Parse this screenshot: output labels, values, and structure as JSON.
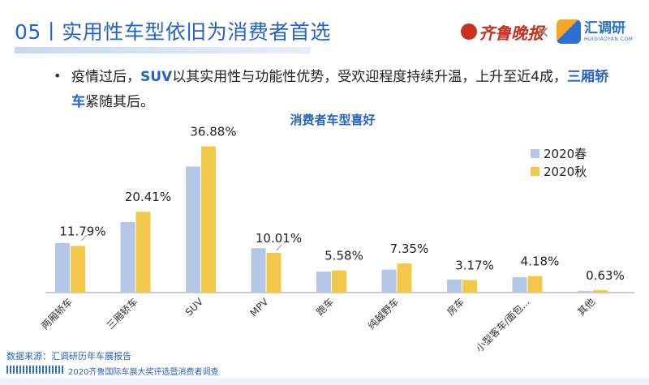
{
  "header": {
    "title": "05丨实用性车型依旧为消费者首选",
    "brand_left": "齐鲁晚报",
    "brand_sep": "×",
    "brand_right": "汇调研",
    "brand_right_en": "HUIDIAOYAN.COM"
  },
  "bullet": {
    "p1": "疫情过后，",
    "h1": "SUV",
    "p2": "以其实用性与功能性优势，受欢迎程度持续升温，上升至近4成，",
    "h2": "三厢轿车",
    "p3": "紧随其后。"
  },
  "chart_data": {
    "type": "bar",
    "title": "消费者车型喜好",
    "categories": [
      "两厢轿车",
      "三厢轿车",
      "SUV",
      "MPV",
      "跑车",
      "纯越野车",
      "房车",
      "小型客车/面包...",
      "其他"
    ],
    "series": [
      {
        "name": "2020春",
        "values": [
          12.5,
          17.8,
          31.8,
          11.2,
          5.3,
          5.8,
          3.3,
          3.9,
          0.4
        ]
      },
      {
        "name": "2020秋",
        "values": [
          11.79,
          20.41,
          36.88,
          10.01,
          5.58,
          7.35,
          3.17,
          4.18,
          0.63
        ]
      }
    ],
    "data_labels": [
      "11.79%",
      "20.41%",
      "36.88%",
      "10.01%",
      "5.58%",
      "7.35%",
      "3.17%",
      "4.18%",
      "0.63%"
    ],
    "legend_position": "top-right",
    "colors": {
      "2020春": "#b4c7e7",
      "2020秋": "#f2c84b",
      "axis": "#999999"
    },
    "ylim": [
      0,
      40
    ]
  },
  "footer": {
    "source": "数据来源：汇调研历年车展报告",
    "note": "2020齐鲁国际车展大奖评选暨消费者调查"
  }
}
